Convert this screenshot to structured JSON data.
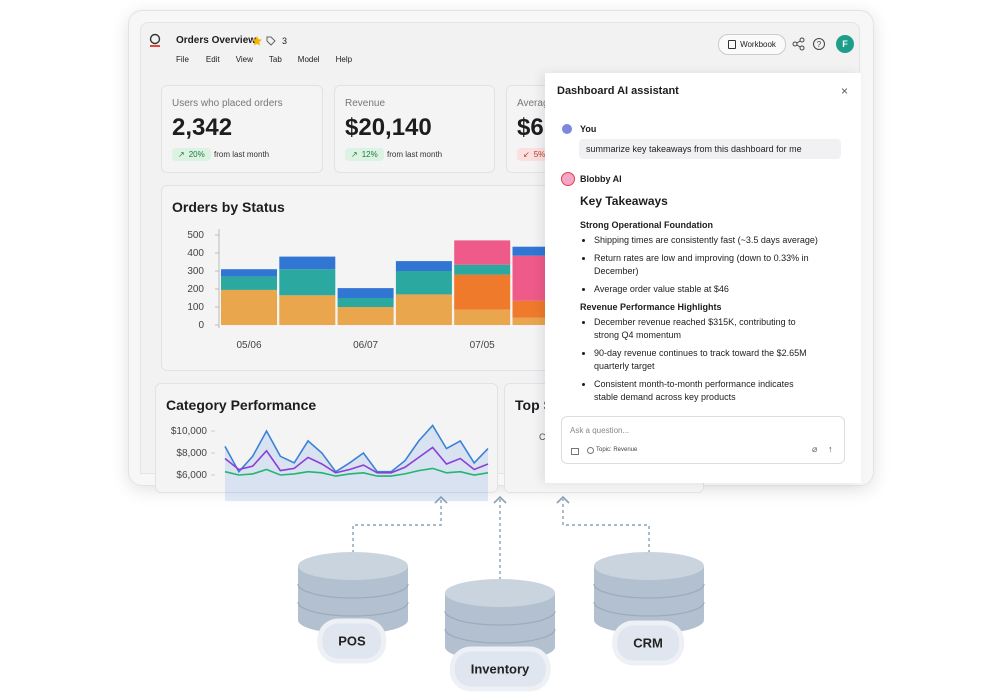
{
  "header": {
    "title": "Orders Overview",
    "tag_count": "3",
    "menu": [
      "File",
      "Edit",
      "View",
      "Tab",
      "Model",
      "Help"
    ],
    "workbook_button": "Workbook",
    "avatar": "F"
  },
  "kpis": [
    {
      "label": "Users who placed orders",
      "value": "2,342",
      "change": "20%",
      "note": "from last month",
      "trend": "up"
    },
    {
      "label": "Revenue",
      "value": "$20,140",
      "change": "12%",
      "note": "from last month",
      "trend": "up"
    },
    {
      "label": "Averag",
      "value": "$6",
      "change": "5%",
      "trend": "down"
    }
  ],
  "chart_data": [
    {
      "type": "bar",
      "stacked": true,
      "title": "Orders by Status",
      "categories": [
        "05/06",
        null,
        "06/07",
        null,
        "07/05",
        null
      ],
      "series": [
        {
          "color": "#E9A64D",
          "values": [
            195,
            165,
            100,
            170,
            85,
            40
          ]
        },
        {
          "color": "#F07A2C",
          "values": [
            0,
            0,
            0,
            0,
            195,
            95
          ]
        },
        {
          "color": "#2BA8A0",
          "values": [
            75,
            145,
            50,
            130,
            55,
            0
          ]
        },
        {
          "color": "#EE5A8A",
          "values": [
            0,
            0,
            0,
            0,
            135,
            250
          ]
        },
        {
          "color": "#3276D3",
          "values": [
            40,
            70,
            55,
            55,
            0,
            50
          ]
        }
      ],
      "ylim": [
        0,
        500
      ],
      "yticks": [
        0,
        100,
        200,
        300,
        400,
        500
      ]
    },
    {
      "type": "line",
      "title": "Category Performance",
      "series": [
        {
          "color": "#3B82D6",
          "area": true,
          "values": [
            8600,
            6300,
            7700,
            10000,
            7700,
            7100,
            9100,
            8000,
            6300,
            7100,
            8000,
            6300,
            6300,
            7300,
            9100,
            10500,
            8400,
            9100,
            7100,
            8400
          ]
        },
        {
          "color": "#8B3FD9",
          "values": [
            7500,
            6500,
            6800,
            8200,
            6400,
            6600,
            7600,
            7000,
            6200,
            6500,
            6900,
            6200,
            6200,
            6700,
            7600,
            8500,
            7000,
            7500,
            6500,
            7000
          ]
        },
        {
          "color": "#22B573",
          "values": [
            6300,
            6000,
            6100,
            6500,
            6000,
            6100,
            6300,
            6200,
            5900,
            6100,
            6200,
            5900,
            5900,
            6100,
            6400,
            6600,
            6200,
            6300,
            6000,
            6200
          ]
        }
      ],
      "ylim": [
        6000,
        10000
      ],
      "yticks": [
        {
          "value": 10000,
          "label": "$10,000"
        },
        {
          "value": 8000,
          "label": "$8,000"
        },
        {
          "value": 6000,
          "label": "$6,000"
        }
      ]
    }
  ],
  "top_card": {
    "title": "Top S",
    "label": "C"
  },
  "assistant": {
    "title": "Dashboard AI assistant",
    "user_name": "You",
    "message": "summarize key takeaways from this dashboard for me",
    "ai_name": "Blobby AI",
    "heading": "Key Takeaways",
    "sections": [
      {
        "heading": "Strong Operational Foundation",
        "bullets": [
          "Shipping times are consistently fast (~3.5 days average)",
          "Return rates are low and improving (down to 0.33% in December)",
          "Average order value stable at $46"
        ]
      },
      {
        "heading": "Revenue Performance Highlights",
        "bullets": [
          "December revenue reached $315K, contributing to strong Q4 momentum",
          "90-day revenue continues to track toward the $2.65M quarterly target",
          "Consistent month-to-month performance indicates stable demand across key products"
        ]
      }
    ],
    "input_placeholder": "Ask a question...",
    "topic": "Topic: Revenue"
  },
  "sources": [
    "POS",
    "Inventory",
    "CRM"
  ]
}
